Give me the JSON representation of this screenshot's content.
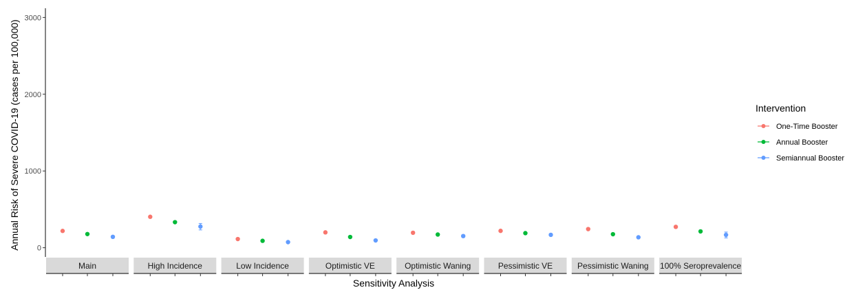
{
  "chart_data": {
    "type": "scatter",
    "xlabel": "Sensitivity Analysis",
    "ylabel": "Annual Risk of Severe COVID-19 (cases per 100,000)",
    "ylim": [
      -120,
      3120
    ],
    "yticks": [
      0,
      1000,
      2000,
      3000
    ],
    "grid": false,
    "legend_position": "right",
    "legend_title": "Intervention",
    "categories": [
      "Main",
      "High Incidence",
      "Low Incidence",
      "Optimistic VE",
      "Optimistic Waning",
      "Pessimistic VE",
      "Pessimistic Waning",
      "100% Seroprevalence"
    ],
    "series": [
      {
        "name": "One-Time Booster",
        "color": "#F8766D",
        "values": [
          219,
          403,
          113,
          200,
          195,
          220,
          243,
          272
        ],
        "error_low": [
          214,
          396,
          109,
          195,
          190,
          214,
          237,
          265
        ],
        "error_high": [
          224,
          410,
          117,
          205,
          200,
          226,
          249,
          279
        ]
      },
      {
        "name": "Annual Booster",
        "color": "#00BA38",
        "values": [
          178,
          333,
          90,
          140,
          172,
          190,
          176,
          213
        ],
        "error_low": [
          173,
          326,
          86,
          135,
          167,
          184,
          170,
          206
        ],
        "error_high": [
          183,
          340,
          94,
          145,
          177,
          196,
          182,
          220
        ]
      },
      {
        "name": "Semiannual Booster",
        "color": "#619CFF",
        "values": [
          142,
          276,
          73,
          95,
          152,
          168,
          136,
          167
        ],
        "error_low": [
          134,
          232,
          69,
          90,
          138,
          160,
          128,
          128
        ],
        "error_high": [
          150,
          316,
          77,
          100,
          166,
          176,
          144,
          204
        ]
      }
    ]
  }
}
